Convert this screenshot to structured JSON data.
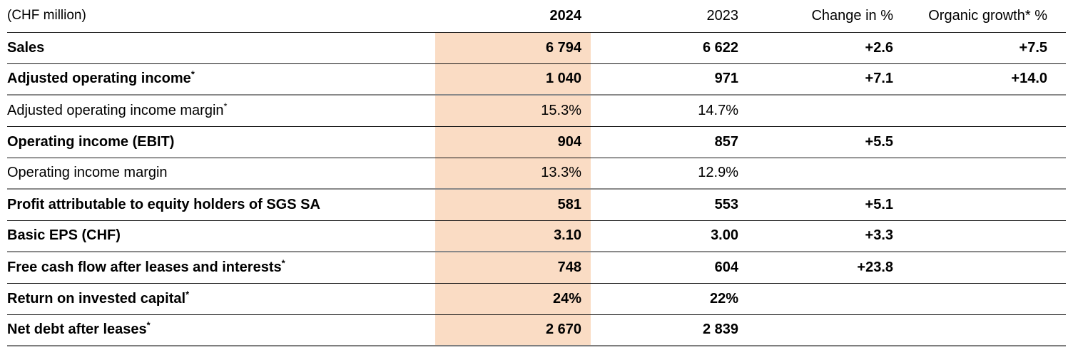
{
  "table": {
    "unit_label": "(CHF million)",
    "highlight_color": "#FADCC4",
    "columns": [
      "2024",
      "2023",
      "Change in %",
      "Organic growth* %"
    ],
    "rows": [
      {
        "label": "Sales",
        "sup": "",
        "bold": true,
        "v2024": "6 794",
        "v2023": "6 622",
        "change": "+2.6",
        "organic": "+7.5",
        "divider": "black"
      },
      {
        "label": "Adjusted operating income",
        "sup": "*",
        "bold": true,
        "v2024": "1 040",
        "v2023": "971",
        "change": "+7.1",
        "organic": "+14.0",
        "divider": "gray"
      },
      {
        "label": "Adjusted operating income margin",
        "sup": "*",
        "bold": false,
        "v2024": "15.3%",
        "v2023": "14.7%",
        "change": "",
        "organic": "",
        "divider": "black"
      },
      {
        "label": "Operating income (EBIT)",
        "sup": "",
        "bold": true,
        "v2024": "904",
        "v2023": "857",
        "change": "+5.5",
        "organic": "",
        "divider": "black"
      },
      {
        "label": "Operating income margin",
        "sup": "",
        "bold": false,
        "v2024": "13.3%",
        "v2023": "12.9%",
        "change": "",
        "organic": "",
        "divider": "gray"
      },
      {
        "label": "Profit attributable to equity holders of SGS SA",
        "sup": "",
        "bold": true,
        "v2024": "581",
        "v2023": "553",
        "change": "+5.1",
        "organic": "",
        "divider": "black"
      },
      {
        "label": "Basic EPS (CHF)",
        "sup": "",
        "bold": true,
        "v2024": "3.10",
        "v2023": "3.00",
        "change": "+3.3",
        "organic": "",
        "divider": "gray"
      },
      {
        "label": "Free cash flow after leases and interests",
        "sup": "*",
        "bold": true,
        "v2024": "748",
        "v2023": "604",
        "change": "+23.8",
        "organic": "",
        "divider": "black"
      },
      {
        "label": "Return on invested capital",
        "sup": "*",
        "bold": true,
        "v2024": "24%",
        "v2023": "22%",
        "change": "",
        "organic": "",
        "divider": "black"
      },
      {
        "label": "Net debt after leases",
        "sup": "*",
        "bold": true,
        "v2024": "2 670",
        "v2023": "2 839",
        "change": "",
        "organic": "",
        "divider": "gray-thick"
      }
    ]
  }
}
